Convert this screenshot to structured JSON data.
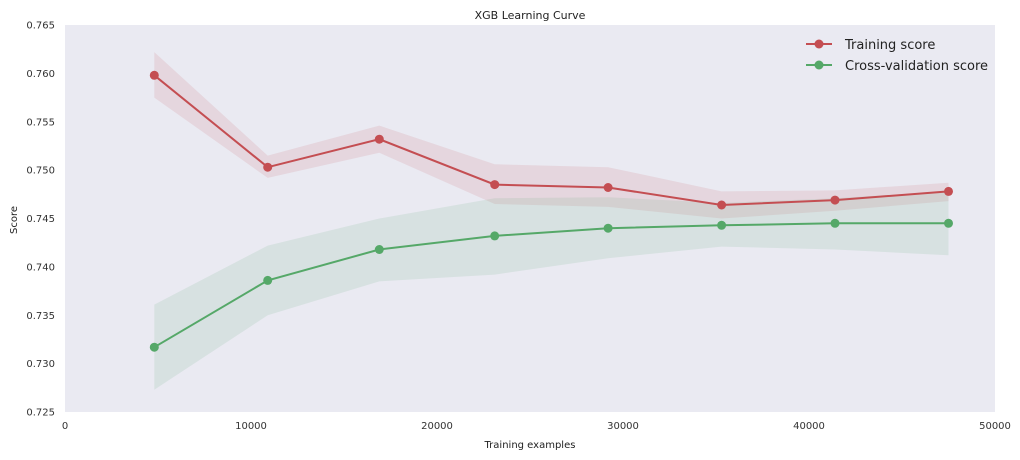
{
  "chart_data": {
    "type": "line",
    "title": "XGB Learning Curve",
    "xlabel": "Training examples",
    "ylabel": "Score",
    "xlim": [
      0,
      50000
    ],
    "ylim": [
      0.725,
      0.765
    ],
    "xticks": [
      0,
      10000,
      20000,
      30000,
      40000,
      50000
    ],
    "xtick_labels": [
      "0",
      "10000",
      "20000",
      "30000",
      "40000",
      "50000"
    ],
    "yticks": [
      0.725,
      0.73,
      0.735,
      0.74,
      0.745,
      0.75,
      0.755,
      0.76,
      0.765
    ],
    "ytick_labels": [
      "0.725",
      "0.730",
      "0.735",
      "0.740",
      "0.745",
      "0.750",
      "0.755",
      "0.760",
      "0.765"
    ],
    "grid": false,
    "legend_position": "top-right",
    "x": [
      4800,
      10900,
      16900,
      23100,
      29200,
      35300,
      41400,
      47500
    ],
    "series": [
      {
        "name": "Training score",
        "color": "#c44e52",
        "band_color": "#c44e52",
        "values": [
          0.7598,
          0.7503,
          0.7532,
          0.7485,
          0.7482,
          0.7464,
          0.7469,
          0.7478
        ],
        "lower": [
          0.7575,
          0.7492,
          0.7518,
          0.7465,
          0.7462,
          0.745,
          0.7458,
          0.7468
        ],
        "upper": [
          0.7622,
          0.7515,
          0.7546,
          0.7506,
          0.7503,
          0.7478,
          0.7479,
          0.7487
        ]
      },
      {
        "name": "Cross-validation score",
        "color": "#55a868",
        "band_color": "#55a868",
        "values": [
          0.7317,
          0.7386,
          0.7418,
          0.7432,
          0.744,
          0.7443,
          0.7445,
          0.7445
        ],
        "lower": [
          0.7273,
          0.735,
          0.7385,
          0.7392,
          0.7409,
          0.7421,
          0.7418,
          0.7412
        ],
        "upper": [
          0.7361,
          0.7422,
          0.745,
          0.7471,
          0.7472,
          0.7466,
          0.7471,
          0.7478
        ]
      }
    ]
  }
}
